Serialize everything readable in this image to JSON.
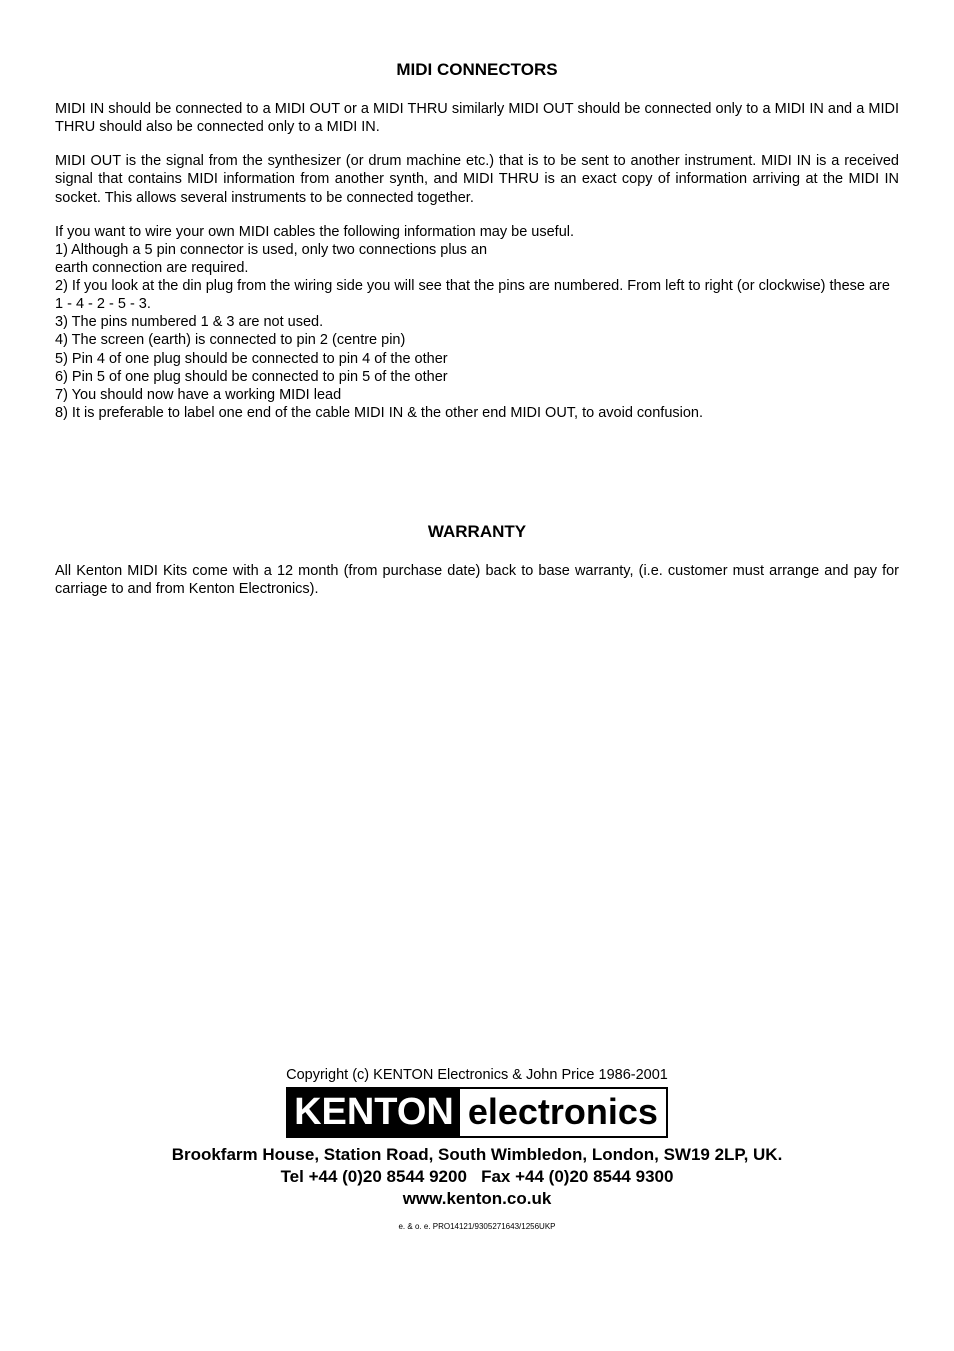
{
  "section1": {
    "heading": "MIDI CONNECTORS",
    "para1": "MIDI IN should be connected to a MIDI OUT or a MIDI THRU similarly MIDI OUT should be connected only to a MIDI IN and a MIDI THRU should also be connected only to a MIDI IN.",
    "para2": "MIDI OUT is the signal from the synthesizer (or drum machine etc.) that is to be sent to another instrument. MIDI IN is a received signal that contains MIDI information from another synth, and MIDI THRU is an exact copy of information arriving at the MIDI IN socket. This allows several instruments to be connected together.",
    "intro": "If you want to wire your own MIDI cables the following information may be useful.",
    "items": [
      "1) Although a 5 pin connector is used, only two connections plus an",
      "earth connection are required.",
      "2) If you look at the din plug from the wiring side you will see that the pins are numbered. From left to right (or clockwise) these are 1 - 4 - 2 - 5 - 3.",
      "3) The pins numbered 1 & 3 are not used.",
      "4) The screen (earth) is connected to pin 2 (centre pin)",
      "5) Pin 4 of one plug should be connected to pin 4 of the other",
      "6) Pin 5 of one plug should be connected to pin 5 of the other",
      "7) You should now have a working MIDI lead",
      "8) It is preferable to label one end of the cable MIDI IN & the other end MIDI OUT, to avoid confusion."
    ]
  },
  "section2": {
    "heading": "WARRANTY",
    "para1": "All Kenton MIDI Kits come with a 12 month (from purchase date) back to base warranty, (i.e. customer must arrange and pay for carriage to and from Kenton Electronics)."
  },
  "footer": {
    "copyright": "Copyright (c) KENTON Electronics & John Price 1986-2001",
    "logo_kenton": "KENTON",
    "logo_electronics": "electronics",
    "address_line1": "Brookfarm House, Station Road, South Wimbledon, London, SW19 2LP, UK.",
    "address_line2": "Tel +44 (0)20 8544 9200   Fax +44 (0)20 8544 9300",
    "address_line3": "www.kenton.co.uk",
    "docref": "e. & o. e. PRO14121/9305271643/1256UKP"
  },
  "style": {
    "page_bg": "#ffffff",
    "text_color": "#000000",
    "logo_bg": "#000000",
    "logo_fg": "#ffffff",
    "body_fontsize": 14.5,
    "heading_fontsize": 17,
    "logo_kenton_fontsize": 38,
    "logo_electronics_fontsize": 36,
    "address_fontsize": 17,
    "docref_fontsize": 8
  }
}
